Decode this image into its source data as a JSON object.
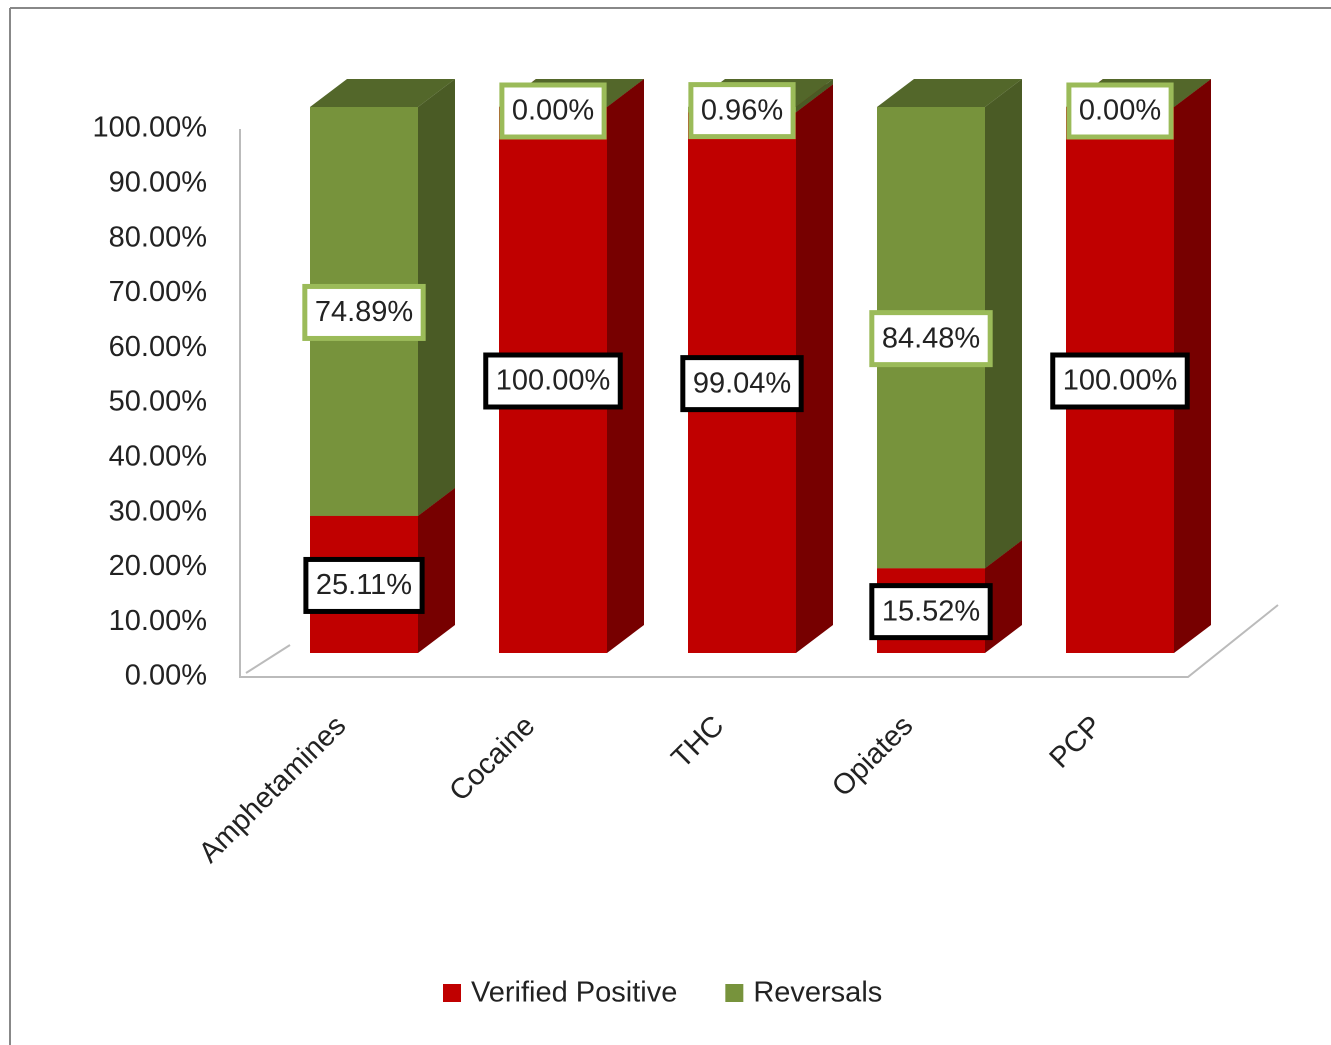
{
  "chart_data": {
    "type": "bar3d_stacked",
    "categories": [
      "Amphetamines",
      "Cocaine",
      "THC",
      "Opiates",
      "PCP"
    ],
    "series": [
      {
        "name": "Verified Positive",
        "color": "#c00000",
        "values": [
          25.11,
          100,
          99.04,
          15.52,
          100
        ],
        "value_labels": [
          "25.11%",
          "100.00%",
          "99.04%",
          "15.52%",
          "100.00%"
        ]
      },
      {
        "name": "Reversals",
        "color": "#77933c",
        "values": [
          74.89,
          0,
          0.96,
          84.48,
          0
        ],
        "value_labels": [
          "74.89%",
          "0.00%",
          "0.96%",
          "84.48%",
          "0.00%"
        ]
      }
    ],
    "ylim": [
      0,
      100
    ],
    "yticks": [
      {
        "value": 0,
        "label": "0.00%"
      },
      {
        "value": 10,
        "label": "10.00%"
      },
      {
        "value": 20,
        "label": "20.00%"
      },
      {
        "value": 30,
        "label": "30.00%"
      },
      {
        "value": 40,
        "label": "40.00%"
      },
      {
        "value": 50,
        "label": "50.00%"
      },
      {
        "value": 60,
        "label": "60.00%"
      },
      {
        "value": 70,
        "label": "70.00%"
      },
      {
        "value": 80,
        "label": "80.00%"
      },
      {
        "value": 90,
        "label": "90.00%"
      },
      {
        "value": 100,
        "label": "100.00%"
      }
    ],
    "legend": "bottom"
  }
}
